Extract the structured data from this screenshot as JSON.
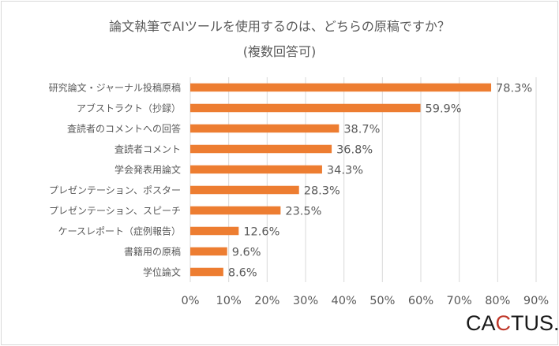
{
  "title_line1": "論文執筆でAIツールを使用するのは、どちらの原稿ですか？",
  "title_line2": "(複数回答可)",
  "logo": {
    "prefix": "CA",
    "accent": "C",
    "suffix": "TUS."
  },
  "colors": {
    "bar": "#ed7d31",
    "grid": "#d9d9d9",
    "text": "#595959",
    "accent": "#c0392b"
  },
  "chart_data": {
    "type": "bar",
    "orientation": "horizontal",
    "categories": [
      "研究論文・ジャーナル投稿原稿",
      "アブストラクト（抄録）",
      "査読者のコメントへの回答",
      "査読者コメント",
      "学会発表用論文",
      "プレゼンテーション、ポスター",
      "プレゼンテーション、スピーチ",
      "ケースレポート（症例報告）",
      "書籍用の原稿",
      "学位論文"
    ],
    "values": [
      78.3,
      59.9,
      38.7,
      36.8,
      34.3,
      28.3,
      23.5,
      12.6,
      9.6,
      8.6
    ],
    "data_labels": [
      "78.3%",
      "59.9%",
      "38.7%",
      "36.8%",
      "34.3%",
      "28.3%",
      "23.5%",
      "12.6%",
      "9.6%",
      "8.6%"
    ],
    "xlim": [
      0,
      90
    ],
    "xticks": [
      "0%",
      "10%",
      "20%",
      "30%",
      "40%",
      "50%",
      "60%",
      "70%",
      "80%",
      "90%"
    ],
    "grid": "vertical"
  }
}
